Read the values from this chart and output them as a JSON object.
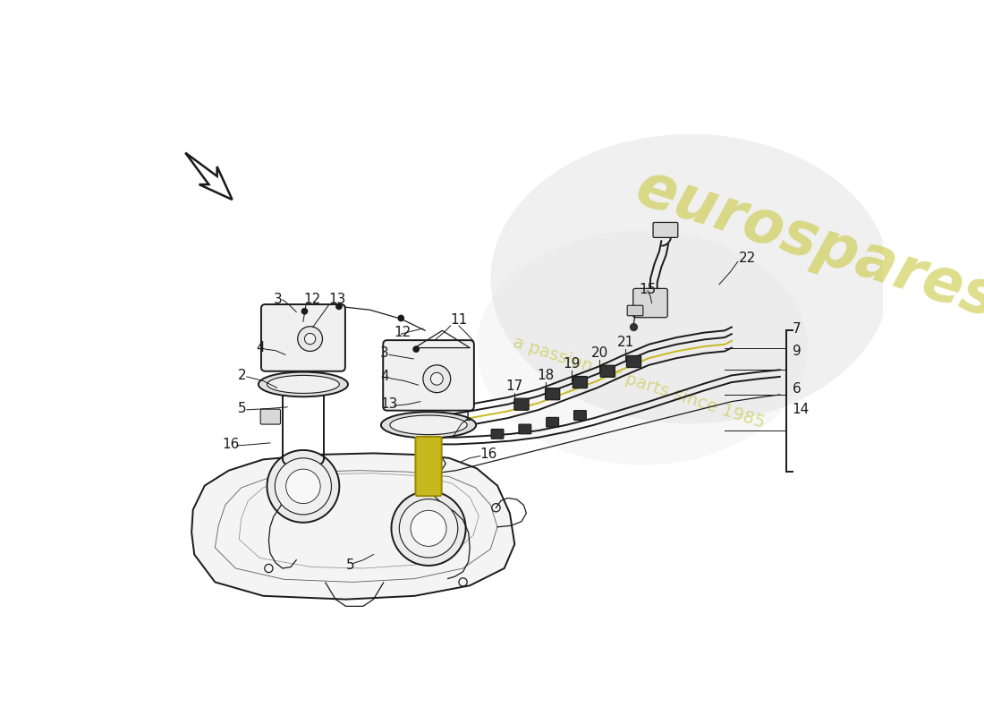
{
  "bg_color": "#ffffff",
  "watermark_color": "#c8c840",
  "line_color": "#1a1a1a",
  "lw_main": 1.4,
  "lw_thin": 0.9,
  "lw_thick": 2.0,
  "arrow_body_color": "#000000",
  "fuel_tube_color": "#c8b820",
  "tank_fill": "#f4f4f4",
  "part_fill": "#f0f0f0",
  "watermark_text1": "eurospares",
  "watermark_text2": "a passion for parts since 1985"
}
